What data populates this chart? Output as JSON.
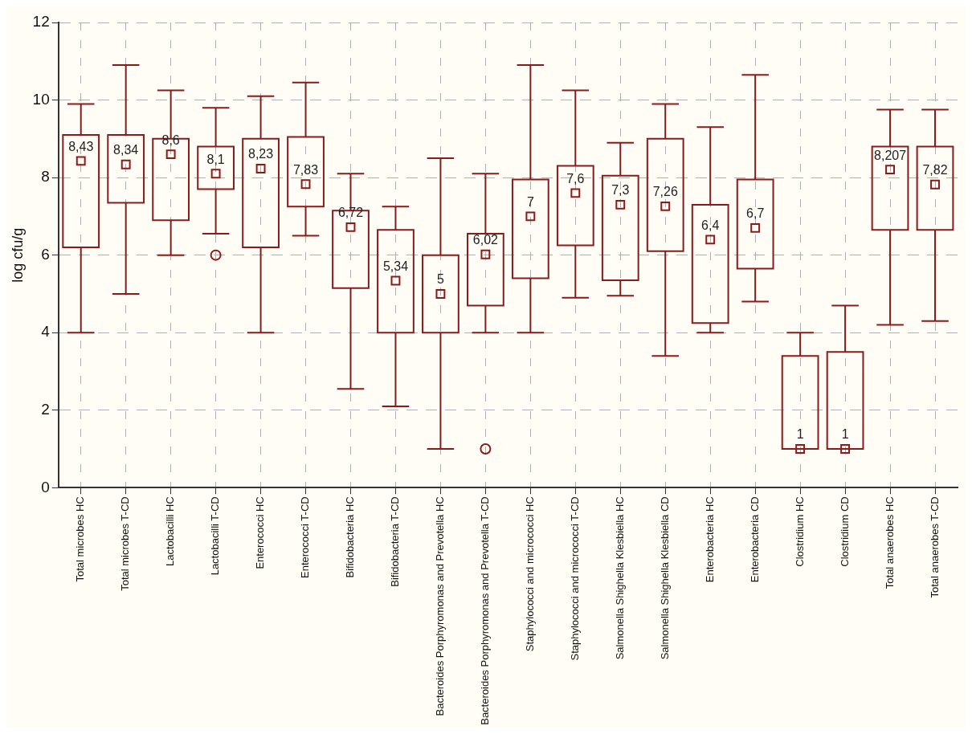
{
  "chart_data": {
    "type": "box",
    "ylabel": "log cfu/g",
    "ylim": [
      0,
      12
    ],
    "yticks": [
      0,
      2,
      4,
      6,
      8,
      10,
      12
    ],
    "grid": true,
    "legend": false,
    "marker": "square",
    "color": "#8b1a1a",
    "categories": [
      "Total microbes HC",
      "Total microbes T-CD",
      "Lactobacilli HC",
      "Lactobacilli T-CD",
      "Enterococci HC",
      "Enterococci T-CD",
      "Bifidobacteria HC",
      "Bifidobacteria T-CD",
      "Bacteroides Porphyromonas and Prevotella HC",
      "Bacteroides Porphyromonas and Prevotella T-CD",
      "Staphylococci and micrococci HC",
      "Staphylococci and micrococci T-CD",
      "Salmonella Shighella Klesbiella HC",
      "Salmonella Shighella Klesbiella CD",
      "Enterobacteria HC",
      "Enterobacteria CD",
      "Clostridium HC",
      "Clostridium CD",
      "Total anaerobes HC",
      "Total anaerobes T-CD"
    ],
    "boxes": [
      {
        "low": 4,
        "q1": 6.2,
        "median": 8.43,
        "q3": 9.1,
        "high": 9.9
      },
      {
        "low": 5,
        "q1": 7.35,
        "median": 8.34,
        "q3": 9.1,
        "high": 10.9
      },
      {
        "low": 6,
        "q1": 6.9,
        "median": 8.6,
        "q3": 9,
        "high": 10.25
      },
      {
        "low": 6.55,
        "q1": 7.7,
        "median": 8.1,
        "q3": 8.8,
        "high": 9.8,
        "outliers": [
          6
        ]
      },
      {
        "low": 4,
        "q1": 6.2,
        "median": 8.23,
        "q3": 9,
        "high": 10.1
      },
      {
        "low": 6.5,
        "q1": 7.25,
        "median": 7.83,
        "q3": 9.05,
        "high": 10.45
      },
      {
        "low": 2.55,
        "q1": 5.15,
        "median": 6.72,
        "q3": 7.15,
        "high": 8.1
      },
      {
        "low": 2.1,
        "q1": 4,
        "median": 5.34,
        "q3": 6.65,
        "high": 7.25
      },
      {
        "low": 1,
        "q1": 4,
        "median": 5,
        "q3": 6,
        "high": 8.5
      },
      {
        "low": 4,
        "q1": 4.7,
        "median": 6.02,
        "q3": 6.55,
        "high": 8.1,
        "outliers": [
          1
        ]
      },
      {
        "low": 4,
        "q1": 5.4,
        "median": 7,
        "q3": 7.95,
        "high": 10.9
      },
      {
        "low": 4.9,
        "q1": 6.25,
        "median": 7.6,
        "q3": 8.3,
        "high": 10.25
      },
      {
        "low": 4.95,
        "q1": 5.35,
        "median": 7.3,
        "q3": 8.05,
        "high": 8.9
      },
      {
        "low": 3.4,
        "q1": 6.1,
        "median": 7.26,
        "q3": 9,
        "high": 9.9
      },
      {
        "low": 4,
        "q1": 4.25,
        "median": 6.4,
        "q3": 7.3,
        "high": 9.3
      },
      {
        "low": 4.8,
        "q1": 5.65,
        "median": 6.7,
        "q3": 7.95,
        "high": 10.65
      },
      {
        "low": 1,
        "q1": 1,
        "median": 1,
        "q3": 3.4,
        "high": 4
      },
      {
        "low": 1,
        "q1": 1,
        "median": 1,
        "q3": 3.5,
        "high": 4.7
      },
      {
        "low": 4.2,
        "q1": 6.65,
        "median": 8.207,
        "q3": 8.8,
        "high": 9.75
      },
      {
        "low": 4.3,
        "q1": 6.65,
        "median": 7.82,
        "q3": 8.8,
        "high": 9.75
      }
    ],
    "value_labels": [
      "8,43",
      "8,34",
      "8,6",
      "8,1",
      "8,23",
      "7,83",
      "6,72",
      "5,34",
      "5",
      "6,02",
      "7",
      "7,6",
      "7,3",
      "7,26",
      "6,4",
      "6,7",
      "1",
      "1",
      "8,207",
      "7,82"
    ]
  }
}
